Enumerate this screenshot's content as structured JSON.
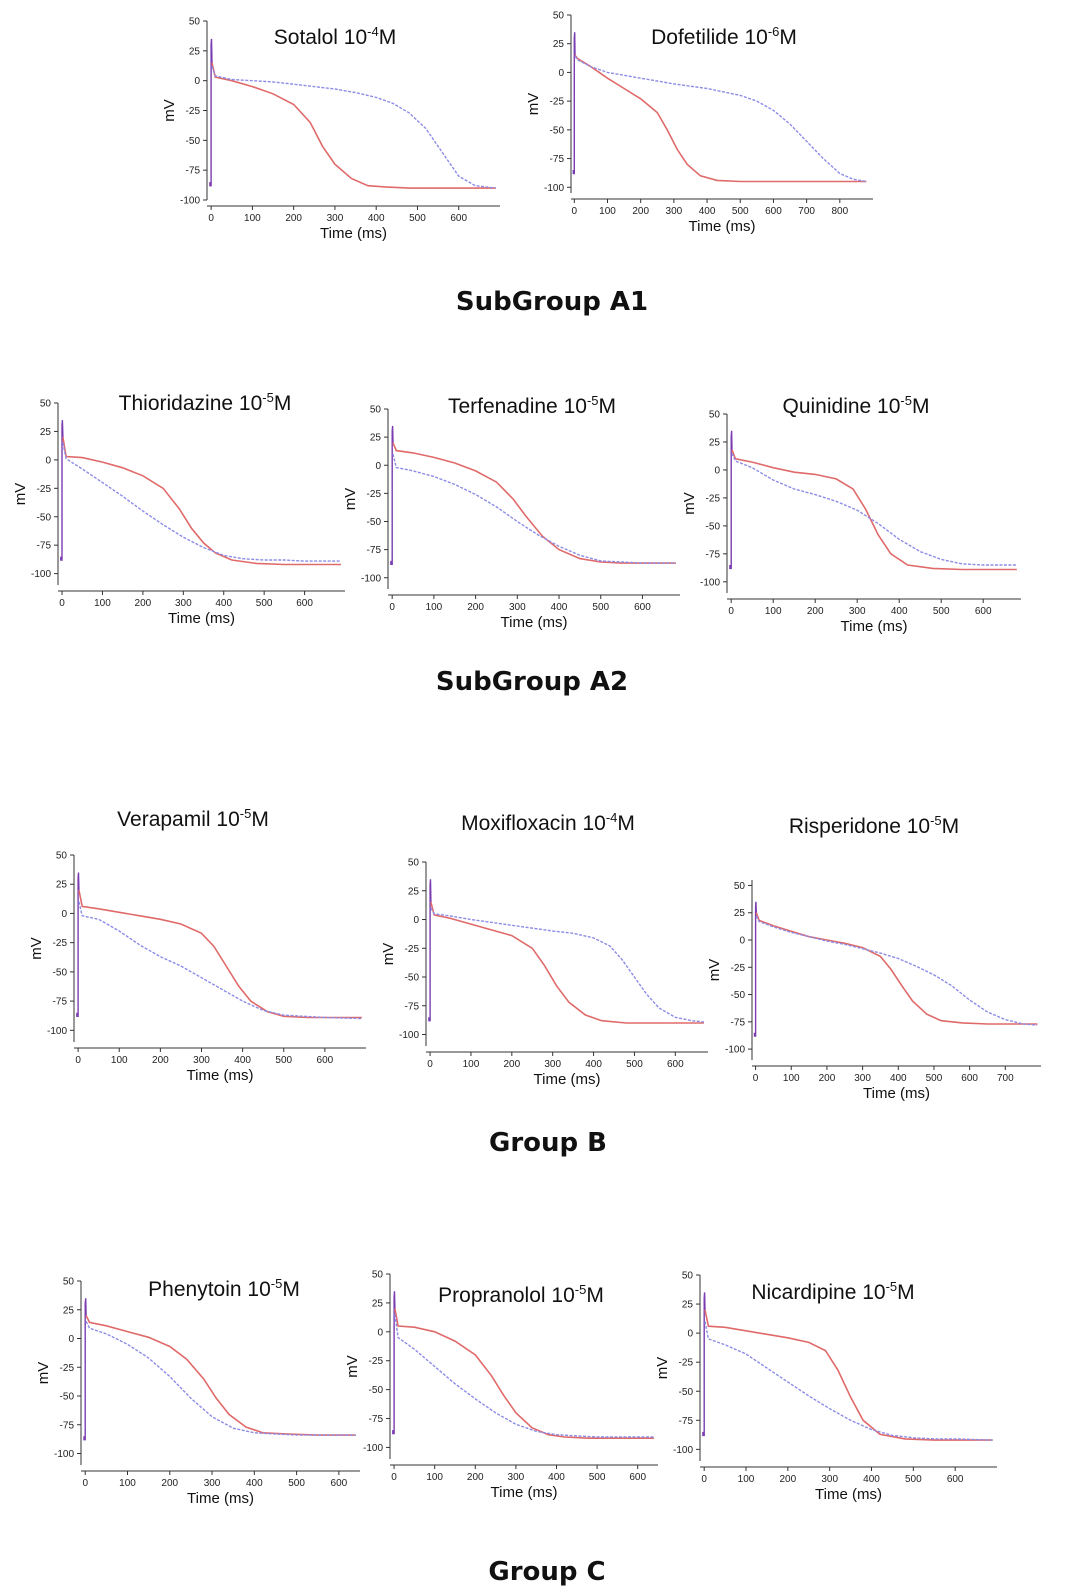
{
  "colors": {
    "control": "#e06a6a",
    "drug": "#8c8ce8",
    "spike": "#7a3cb0"
  },
  "group_titles": [
    "SubGroup A1",
    "SubGroup A2",
    "Group B",
    "Group C"
  ],
  "chart_data": [
    {
      "type": "line",
      "title": {
        "drug": "Sotalol 10",
        "exp": "-4",
        "unit": "M"
      },
      "xlabel": "Time (ms)",
      "ylabel": "mV",
      "xlim": [
        -10,
        700
      ],
      "ylim": [
        -100,
        50
      ],
      "xticks": [
        0,
        100,
        200,
        300,
        400,
        500,
        600
      ],
      "yticks": [
        50,
        25,
        0,
        -25,
        -50,
        -75,
        -100
      ],
      "series": [
        {
          "x": [
            2,
            10,
            50,
            100,
            150,
            200,
            240,
            270,
            300,
            340,
            380,
            420,
            480,
            550,
            620,
            690
          ],
          "y": [
            15,
            3,
            0,
            -5,
            -11,
            -20,
            -35,
            -55,
            -70,
            -82,
            -88,
            -89,
            -90,
            -90,
            -90,
            -90
          ]
        },
        {
          "x": [
            2,
            10,
            50,
            100,
            150,
            200,
            250,
            300,
            350,
            400,
            440,
            480,
            520,
            560,
            600,
            640,
            690
          ],
          "y": [
            12,
            4,
            1,
            0,
            -1,
            -3,
            -5,
            -7,
            -10,
            -14,
            -19,
            -27,
            -40,
            -60,
            -80,
            -88,
            -90
          ]
        }
      ]
    },
    {
      "type": "line",
      "title": {
        "drug": "Dofetilide 10",
        "exp": "-6",
        "unit": "M"
      },
      "xlabel": "Time (ms)",
      "ylabel": "mV",
      "xlim": [
        -10,
        900
      ],
      "ylim": [
        -105,
        50
      ],
      "xticks": [
        0,
        100,
        200,
        300,
        400,
        500,
        600,
        700,
        800
      ],
      "yticks": [
        50,
        25,
        0,
        -25,
        -50,
        -75,
        -100
      ],
      "series": [
        {
          "x": [
            2,
            10,
            50,
            100,
            150,
            200,
            250,
            280,
            310,
            340,
            380,
            430,
            500,
            600,
            700,
            800,
            880
          ],
          "y": [
            15,
            12,
            5,
            -5,
            -14,
            -23,
            -35,
            -50,
            -67,
            -80,
            -90,
            -94,
            -95,
            -95,
            -95,
            -95,
            -95
          ]
        },
        {
          "x": [
            2,
            10,
            50,
            100,
            200,
            300,
            400,
            500,
            550,
            600,
            650,
            700,
            750,
            800,
            840,
            880
          ],
          "y": [
            14,
            11,
            5,
            0,
            -5,
            -10,
            -14,
            -20,
            -25,
            -33,
            -45,
            -60,
            -75,
            -88,
            -93,
            -95
          ]
        }
      ]
    },
    {
      "type": "line",
      "title": {
        "drug": "Thioridazine 10",
        "exp": "-5",
        "unit": "M"
      },
      "xlabel": "Time (ms)",
      "ylabel": "mV",
      "xlim": [
        -10,
        700
      ],
      "ylim": [
        -110,
        50
      ],
      "xticks": [
        0,
        100,
        200,
        300,
        400,
        500,
        600
      ],
      "yticks": [
        50,
        25,
        0,
        -25,
        -50,
        -75,
        -100
      ],
      "series": [
        {
          "x": [
            2,
            10,
            50,
            100,
            150,
            200,
            250,
            290,
            320,
            350,
            380,
            420,
            480,
            550,
            620,
            690
          ],
          "y": [
            20,
            3,
            2,
            -2,
            -7,
            -14,
            -25,
            -43,
            -60,
            -73,
            -82,
            -88,
            -91,
            -92,
            -92,
            -92
          ]
        },
        {
          "x": [
            2,
            10,
            50,
            100,
            150,
            200,
            250,
            300,
            350,
            400,
            450,
            500,
            550,
            600,
            690
          ],
          "y": [
            15,
            1,
            -8,
            -20,
            -32,
            -45,
            -57,
            -68,
            -77,
            -84,
            -87,
            -88,
            -88,
            -89,
            -89
          ]
        }
      ]
    },
    {
      "type": "line",
      "title": {
        "drug": "Terfenadine 10",
        "exp": "-5",
        "unit": "M"
      },
      "xlabel": "Time (ms)",
      "ylabel": "mV",
      "xlim": [
        -10,
        690
      ],
      "ylim": [
        -110,
        50
      ],
      "xticks": [
        0,
        100,
        200,
        300,
        400,
        500,
        600
      ],
      "yticks": [
        50,
        25,
        0,
        -25,
        -50,
        -75,
        -100
      ],
      "series": [
        {
          "x": [
            2,
            10,
            50,
            100,
            150,
            200,
            250,
            290,
            320,
            360,
            400,
            450,
            500,
            550,
            620,
            680
          ],
          "y": [
            20,
            13,
            11,
            7,
            2,
            -5,
            -15,
            -30,
            -45,
            -63,
            -75,
            -83,
            -86,
            -87,
            -87,
            -87
          ]
        },
        {
          "x": [
            2,
            10,
            50,
            100,
            150,
            200,
            250,
            300,
            350,
            400,
            450,
            500,
            550,
            600,
            680
          ],
          "y": [
            10,
            -2,
            -5,
            -10,
            -17,
            -26,
            -37,
            -50,
            -62,
            -72,
            -80,
            -85,
            -86,
            -87,
            -87
          ]
        }
      ]
    },
    {
      "type": "line",
      "title": {
        "drug": "Quinidine 10",
        "exp": "-5",
        "unit": "M"
      },
      "xlabel": "Time (ms)",
      "ylabel": "mV",
      "xlim": [
        -10,
        690
      ],
      "ylim": [
        -110,
        50
      ],
      "xticks": [
        0,
        100,
        200,
        300,
        400,
        500,
        600
      ],
      "yticks": [
        50,
        25,
        0,
        -25,
        -50,
        -75,
        -100
      ],
      "series": [
        {
          "x": [
            2,
            10,
            50,
            100,
            150,
            200,
            250,
            290,
            320,
            350,
            380,
            420,
            480,
            550,
            620,
            680
          ],
          "y": [
            18,
            10,
            7,
            2,
            -2,
            -4,
            -8,
            -17,
            -35,
            -58,
            -75,
            -85,
            -88,
            -89,
            -89,
            -89
          ]
        },
        {
          "x": [
            2,
            10,
            50,
            100,
            150,
            200,
            250,
            300,
            350,
            400,
            450,
            500,
            550,
            600,
            680
          ],
          "y": [
            15,
            8,
            2,
            -9,
            -17,
            -22,
            -28,
            -36,
            -48,
            -62,
            -73,
            -80,
            -84,
            -85,
            -85
          ]
        }
      ]
    },
    {
      "type": "line",
      "title": {
        "drug": "Verapamil 10",
        "exp": "-5",
        "unit": "M"
      },
      "xlabel": "Time (ms)",
      "ylabel": "mV",
      "xlim": [
        -10,
        700
      ],
      "ylim": [
        -110,
        50
      ],
      "xticks": [
        0,
        100,
        200,
        300,
        400,
        500,
        600
      ],
      "yticks": [
        50,
        25,
        0,
        -25,
        -50,
        -75,
        -100
      ],
      "series": [
        {
          "x": [
            2,
            10,
            50,
            100,
            150,
            200,
            250,
            300,
            330,
            360,
            390,
            420,
            460,
            500,
            560,
            620,
            690
          ],
          "y": [
            20,
            6,
            4,
            1,
            -2,
            -5,
            -9,
            -17,
            -28,
            -45,
            -62,
            -75,
            -84,
            -88,
            -89,
            -89,
            -89
          ]
        },
        {
          "x": [
            2,
            10,
            50,
            100,
            150,
            200,
            250,
            300,
            350,
            400,
            450,
            500,
            550,
            600,
            690
          ],
          "y": [
            10,
            -2,
            -5,
            -15,
            -27,
            -37,
            -45,
            -55,
            -65,
            -75,
            -83,
            -87,
            -88,
            -89,
            -90
          ]
        }
      ]
    },
    {
      "type": "line",
      "title": {
        "drug": "Moxifloxacin 10",
        "exp": "-4",
        "unit": "M"
      },
      "xlabel": "Time (ms)",
      "ylabel": "mV",
      "xlim": [
        -10,
        680
      ],
      "ylim": [
        -110,
        50
      ],
      "xticks": [
        0,
        100,
        200,
        300,
        400,
        500,
        600
      ],
      "yticks": [
        50,
        25,
        0,
        -25,
        -50,
        -75,
        -100
      ],
      "series": [
        {
          "x": [
            2,
            10,
            50,
            100,
            150,
            200,
            250,
            280,
            310,
            340,
            380,
            420,
            480,
            550,
            620,
            670
          ],
          "y": [
            15,
            4,
            1,
            -4,
            -9,
            -14,
            -25,
            -40,
            -58,
            -72,
            -83,
            -88,
            -90,
            -90,
            -90,
            -90
          ]
        },
        {
          "x": [
            2,
            10,
            50,
            100,
            200,
            300,
            350,
            400,
            440,
            470,
            500,
            530,
            560,
            600,
            640,
            670
          ],
          "y": [
            10,
            5,
            3,
            0,
            -5,
            -10,
            -12,
            -16,
            -23,
            -35,
            -50,
            -65,
            -77,
            -85,
            -88,
            -89
          ]
        }
      ]
    },
    {
      "type": "line",
      "title": {
        "drug": "Risperidone 10",
        "exp": "-5",
        "unit": "M"
      },
      "xlabel": "Time (ms)",
      "ylabel": "mV",
      "xlim": [
        -10,
        800
      ],
      "ylim": [
        -110,
        55
      ],
      "xticks": [
        0,
        100,
        200,
        300,
        400,
        500,
        600,
        700
      ],
      "yticks": [
        50,
        25,
        0,
        -25,
        -50,
        -75,
        -100
      ],
      "series": [
        {
          "x": [
            2,
            10,
            50,
            100,
            150,
            200,
            250,
            300,
            350,
            380,
            410,
            440,
            480,
            520,
            580,
            650,
            720,
            790
          ],
          "y": [
            25,
            18,
            13,
            8,
            3,
            0,
            -3,
            -7,
            -15,
            -27,
            -42,
            -56,
            -68,
            -74,
            -76,
            -77,
            -77,
            -77
          ]
        },
        {
          "x": [
            2,
            10,
            50,
            100,
            150,
            200,
            250,
            300,
            350,
            400,
            450,
            500,
            550,
            600,
            650,
            700,
            750,
            790
          ],
          "y": [
            22,
            17,
            12,
            7,
            3,
            -1,
            -4,
            -8,
            -12,
            -17,
            -24,
            -32,
            -42,
            -55,
            -66,
            -73,
            -77,
            -78
          ]
        }
      ]
    },
    {
      "type": "line",
      "title": {
        "drug": "Phenytoin 10",
        "exp": "-5",
        "unit": "M"
      },
      "xlabel": "Time (ms)",
      "ylabel": "mV",
      "xlim": [
        -10,
        650
      ],
      "ylim": [
        -110,
        50
      ],
      "xticks": [
        0,
        100,
        200,
        300,
        400,
        500,
        600
      ],
      "yticks": [
        50,
        25,
        0,
        -25,
        -50,
        -75,
        -100
      ],
      "series": [
        {
          "x": [
            2,
            10,
            50,
            100,
            150,
            200,
            240,
            280,
            310,
            340,
            380,
            420,
            480,
            550,
            640
          ],
          "y": [
            20,
            14,
            11,
            6,
            1,
            -7,
            -18,
            -35,
            -52,
            -66,
            -77,
            -82,
            -83,
            -84,
            -84
          ]
        },
        {
          "x": [
            2,
            10,
            50,
            100,
            150,
            200,
            250,
            300,
            350,
            400,
            450,
            500,
            550,
            640
          ],
          "y": [
            15,
            9,
            4,
            -5,
            -17,
            -33,
            -52,
            -68,
            -78,
            -82,
            -83,
            -84,
            -84,
            -84
          ]
        }
      ]
    },
    {
      "type": "line",
      "title": {
        "drug": "Propranolol 10",
        "exp": "-5",
        "unit": "M"
      },
      "xlabel": "Time (ms)",
      "ylabel": "mV",
      "xlim": [
        -10,
        650
      ],
      "ylim": [
        -110,
        50
      ],
      "xticks": [
        0,
        100,
        200,
        300,
        400,
        500,
        600
      ],
      "yticks": [
        50,
        25,
        0,
        -25,
        -50,
        -75,
        -100
      ],
      "series": [
        {
          "x": [
            2,
            10,
            50,
            100,
            150,
            200,
            240,
            270,
            300,
            340,
            380,
            420,
            480,
            550,
            640
          ],
          "y": [
            20,
            5,
            4,
            0,
            -8,
            -20,
            -38,
            -55,
            -70,
            -83,
            -89,
            -91,
            -92,
            -92,
            -92
          ]
        },
        {
          "x": [
            2,
            10,
            50,
            100,
            150,
            200,
            250,
            300,
            350,
            400,
            450,
            500,
            550,
            640
          ],
          "y": [
            15,
            -5,
            -15,
            -30,
            -45,
            -58,
            -70,
            -80,
            -86,
            -89,
            -90,
            -91,
            -91,
            -91
          ]
        }
      ]
    },
    {
      "type": "line",
      "title": {
        "drug": "Nicardipine 10",
        "exp": "-5",
        "unit": "M"
      },
      "xlabel": "Time (ms)",
      "ylabel": "mV",
      "xlim": [
        -10,
        700
      ],
      "ylim": [
        -110,
        50
      ],
      "xticks": [
        0,
        100,
        200,
        300,
        400,
        500,
        600
      ],
      "yticks": [
        50,
        25,
        0,
        -25,
        -50,
        -75,
        -100
      ],
      "series": [
        {
          "x": [
            2,
            10,
            50,
            100,
            150,
            200,
            250,
            290,
            320,
            350,
            380,
            420,
            480,
            550,
            620,
            690
          ],
          "y": [
            20,
            6,
            5,
            2,
            -1,
            -4,
            -8,
            -15,
            -32,
            -55,
            -75,
            -87,
            -91,
            -92,
            -92,
            -92
          ]
        },
        {
          "x": [
            2,
            10,
            50,
            100,
            150,
            200,
            250,
            300,
            350,
            400,
            450,
            500,
            550,
            600,
            690
          ],
          "y": [
            10,
            -5,
            -10,
            -18,
            -30,
            -42,
            -54,
            -65,
            -75,
            -83,
            -88,
            -90,
            -91,
            -91,
            -92
          ]
        }
      ]
    }
  ]
}
